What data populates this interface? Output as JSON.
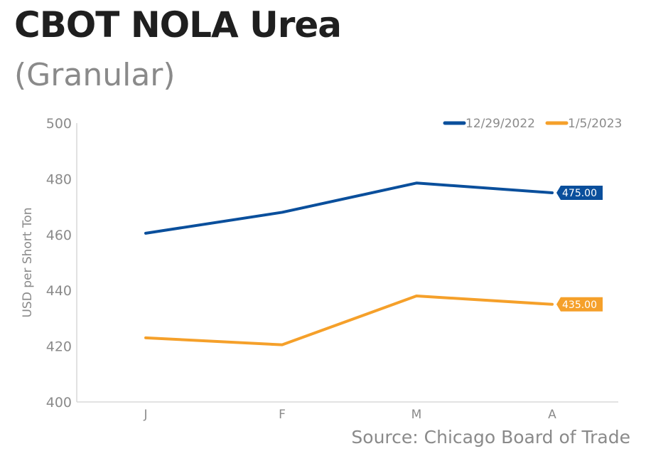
{
  "colors": {
    "series_1": "#0a4f9c",
    "series_2": "#f5a02a",
    "axis": "#d9d9d9",
    "text_muted": "#8a8a8a"
  },
  "source": "Source: Chicago Board of Trade",
  "chart_data": {
    "type": "line",
    "title": "CBOT NOLA Urea",
    "subtitle": "(Granular)",
    "xlabel": "",
    "ylabel": "USD per Short Ton",
    "categories": [
      "J",
      "F",
      "M",
      "A"
    ],
    "ylim": [
      400,
      500
    ],
    "yticks": [
      400,
      420,
      440,
      460,
      480,
      500
    ],
    "grid": false,
    "legend_position": "top-right",
    "series": [
      {
        "name": "12/29/2022",
        "values": [
          460.5,
          468,
          478.5,
          475
        ],
        "end_label": "475.00"
      },
      {
        "name": "1/5/2023",
        "values": [
          423,
          420.5,
          438,
          435
        ],
        "end_label": "435.00"
      }
    ]
  }
}
